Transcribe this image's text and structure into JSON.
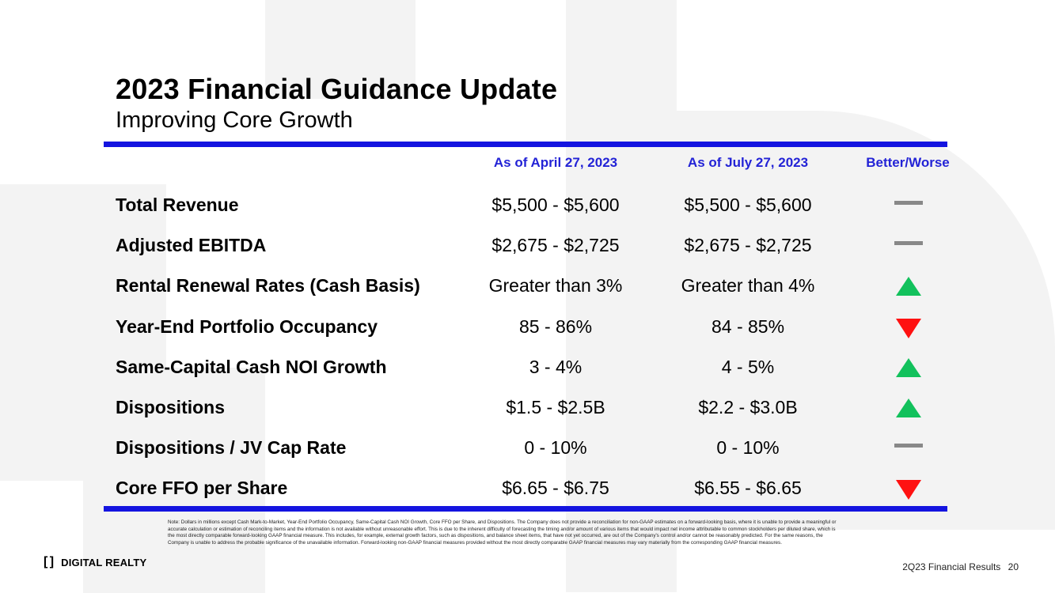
{
  "colors": {
    "accent": "#1414e0",
    "header_text": "#2323d6",
    "neutral": "#888888",
    "up": "#12c15c",
    "down": "#ff1111"
  },
  "header": {
    "title": "2023 Financial Guidance Update",
    "subtitle": "Improving Core Growth"
  },
  "table": {
    "columns": [
      "As of April 27, 2023",
      "As of July 27, 2023",
      "Better/Worse"
    ],
    "rows": [
      {
        "label": "Total Revenue",
        "april": "$5,500 - $5,600",
        "july": "$5,500 - $5,600",
        "change": "neutral"
      },
      {
        "label": "Adjusted EBITDA",
        "april": "$2,675 - $2,725",
        "july": "$2,675 - $2,725",
        "change": "neutral"
      },
      {
        "label": "Rental Renewal Rates (Cash Basis)",
        "april": "Greater than 3%",
        "july": "Greater than 4%",
        "change": "up"
      },
      {
        "label": "Year-End Portfolio Occupancy",
        "april": "85 - 86%",
        "july": "84 - 85%",
        "change": "down"
      },
      {
        "label": "Same-Capital Cash NOI Growth",
        "april": "3 - 4%",
        "july": "4 - 5%",
        "change": "up"
      },
      {
        "label": "Dispositions",
        "april": "$1.5 - $2.5B",
        "july": "$2.2 - $3.0B",
        "change": "up"
      },
      {
        "label": "Dispositions / JV Cap Rate",
        "april": "0 - 10%",
        "july": "0 - 10%",
        "change": "neutral"
      },
      {
        "label": "Core FFO per Share",
        "april": "$6.65 - $6.75",
        "july": "$6.55 - $6.65",
        "change": "down"
      }
    ]
  },
  "footnote": "Note: Dollars in millions except Cash Mark-to-Market, Year-End Portfolio Occupancy, Same-Capital Cash NOI Growth, Core FFO per Share, and Dispositions. The Company does not provide a reconciliation for non-GAAP estimates on a forward-looking basis, where it is unable to provide a meaningful or accurate calculation or estimation of reconciling items and the information is not available without unreasonable effort. This is due to the inherent difficulty of forecasting the timing and/or amount of various items that would impact net income attributable to common stockholders per diluted share, which is the most directly comparable forward-looking GAAP financial measure. This includes, for example, external growth factors, such as dispositions, and balance sheet items, that have not yet occurred, are out of the Company's control and/or cannot be reasonably predicted. For the same reasons, the Company is unable to address the probable significance of the unavailable information. Forward-looking non-GAAP financial measures provided without the most directly comparable GAAP financial measures may vary materially from the corresponding GAAP financial measures.",
  "footer": {
    "logo_mark": "[ ]",
    "logo_text": "DIGITAL REALTY",
    "report_label": "2Q23 Financial Results",
    "page_number": "20"
  }
}
